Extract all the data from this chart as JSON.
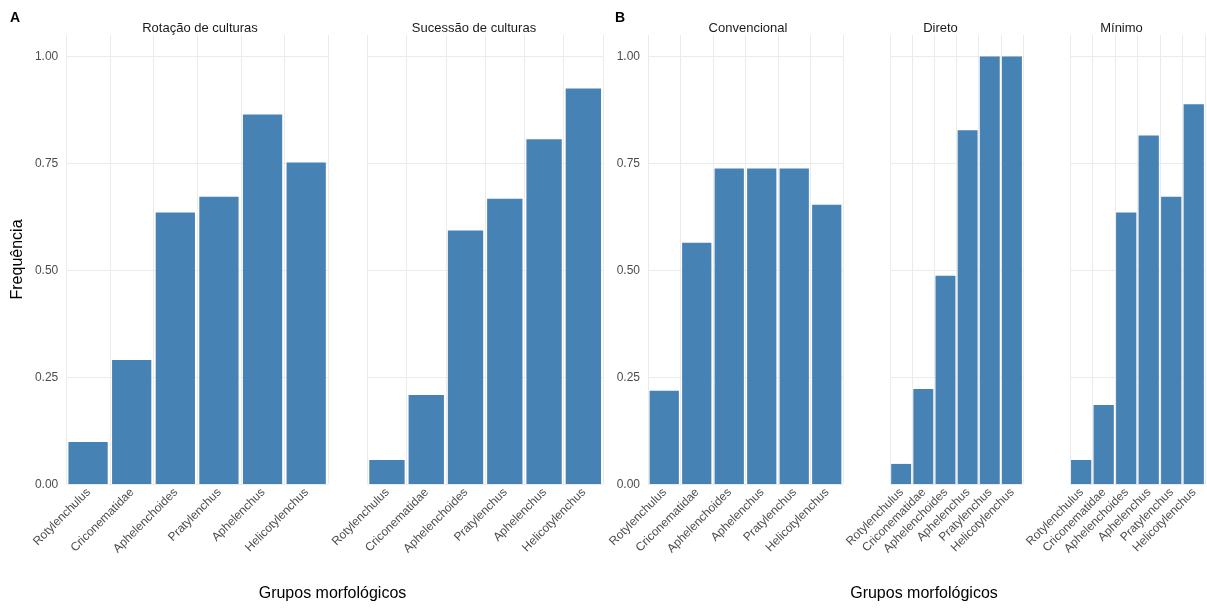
{
  "chart_data": [
    {
      "type": "bar",
      "title": "Rotação de culturas",
      "xlabel": "Grupos morfológicos",
      "ylabel": "Frequência",
      "annotations": [
        "A"
      ],
      "categories": [
        "Rotylenchulus",
        "Criconematidae",
        "Aphelenchoides",
        "Pratylenchus",
        "Aphelenchus",
        "Helicotylenchus"
      ],
      "values": [
        0.098,
        0.29,
        0.635,
        0.672,
        0.864,
        0.752
      ],
      "color": "#4682b4",
      "ylim": [
        0,
        1.05
      ],
      "yticks": [
        {
          "value": 0,
          "label": "0.00"
        },
        {
          "value": 0.25,
          "label": "0.25"
        },
        {
          "value": 0.5,
          "label": "0.50"
        },
        {
          "value": 0.75,
          "label": "0.75"
        },
        {
          "value": 1,
          "label": "1.00"
        }
      ],
      "grid": true
    },
    {
      "type": "bar",
      "title": "Sucessão de culturas",
      "categories": [
        "Rotylenchulus",
        "Criconematidae",
        "Aphelenchoides",
        "Pratylenchus",
        "Aphelenchus",
        "Helicotylenchus"
      ],
      "values": [
        0.056,
        0.208,
        0.593,
        0.667,
        0.806,
        0.925
      ],
      "color": "#4682b4",
      "ylim": [
        0,
        1.05
      ],
      "yticks": [
        0,
        0.25,
        0.5,
        0.75,
        1
      ],
      "grid": true,
      "tick_labels": "x"
    },
    {
      "type": "bar",
      "title": "Convencional",
      "xlabel": "Grupos morfológicos",
      "annotations": [
        "B"
      ],
      "categories": [
        "Rotylenchulus",
        "Criconematidae",
        "Aphelenchoides",
        "Aphelenchus",
        "Pratylenchus",
        "Helicotylenchus"
      ],
      "values": [
        0.218,
        0.564,
        0.738,
        0.738,
        0.738,
        0.653
      ],
      "color": "#4682b4",
      "ylim": [
        0,
        1.05
      ],
      "yticks": [
        {
          "value": 0,
          "label": "0.00"
        },
        {
          "value": 0.25,
          "label": "0.25"
        },
        {
          "value": 0.5,
          "label": "0.50"
        },
        {
          "value": 0.75,
          "label": "0.75"
        },
        {
          "value": 1,
          "label": "1.00"
        }
      ],
      "grid": true
    },
    {
      "type": "bar",
      "title": "Direto",
      "categories": [
        "Rotylenchulus",
        "Criconematidae",
        "Aphelenchoides",
        "Aphelenchus",
        "Pratylenchus",
        "Helicotylenchus"
      ],
      "values": [
        0.047,
        0.222,
        0.487,
        0.827,
        1.0,
        1.0
      ],
      "color": "#4682b4",
      "ylim": [
        0,
        1.05
      ],
      "yticks": [
        0,
        0.25,
        0.5,
        0.75,
        1
      ],
      "grid": true,
      "tick_labels": "x"
    },
    {
      "type": "bar",
      "title": "Mínimo",
      "categories": [
        "Rotylenchulus",
        "Criconematidae",
        "Aphelenchoides",
        "Aphelenchus",
        "Pratylenchus",
        "Helicotylenchus"
      ],
      "values": [
        0.056,
        0.185,
        0.635,
        0.815,
        0.672,
        0.888
      ],
      "color": "#4682b4",
      "ylim": [
        0,
        1.05
      ],
      "yticks": [
        0,
        0.25,
        0.5,
        0.75,
        1
      ],
      "grid": true,
      "tick_labels": "x"
    }
  ]
}
